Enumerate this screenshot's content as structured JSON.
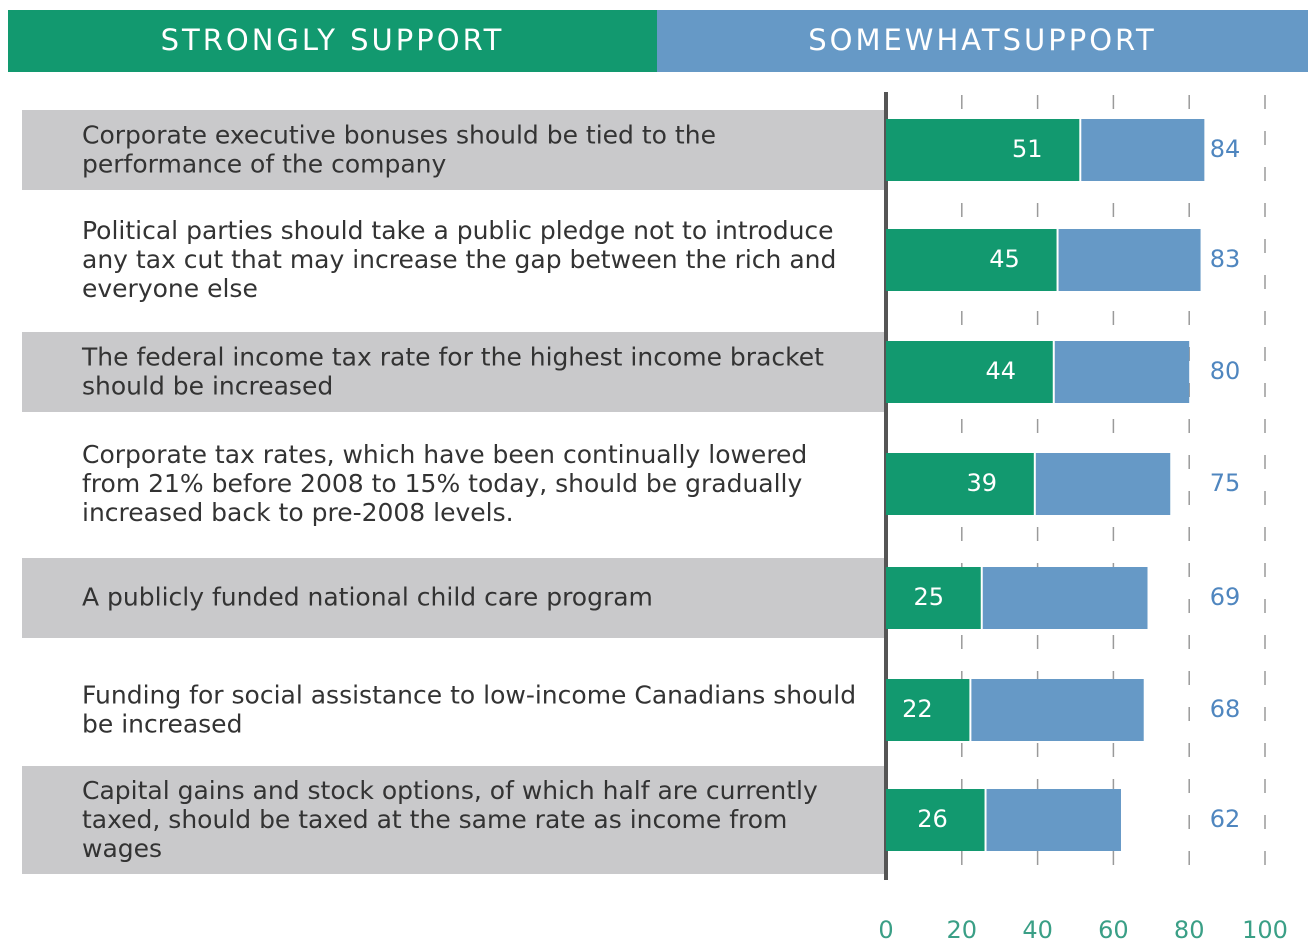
{
  "chart_data": {
    "type": "stacked-bar-horizontal",
    "categories": [
      "Corporate executive bonuses should be tied to the performance of the company",
      "Political parties should take a public pledge not to introduce any tax cut that may increase the gap between the rich and everyone else",
      "The federal income tax rate for the highest income bracket should be increased",
      "Corporate tax rates, which have been continually lowered from 21% before 2008 to 15% today, should be gradually increased back to pre-2008 levels.",
      "A publicly funded national child care program",
      "Funding for social assistance to low-income Canadians should be increased",
      "Capital gains and stock options, of which half are currently taxed, should be taxed at the same rate as income from wages"
    ],
    "series": [
      {
        "name": "STRONGLY SUPPORT",
        "color": "#12996f",
        "values": [
          51,
          45,
          44,
          39,
          25,
          22,
          26
        ]
      },
      {
        "name": "SOMEWHATSUPPORT",
        "color": "#6699c6",
        "values": [
          33,
          38,
          36,
          36,
          44,
          46,
          36
        ]
      }
    ],
    "totals": [
      84,
      83,
      80,
      75,
      69,
      68,
      62
    ],
    "xlim": [
      0,
      100
    ],
    "xticks": [
      0,
      20,
      40,
      60,
      80,
      100
    ],
    "grid": true
  }
}
